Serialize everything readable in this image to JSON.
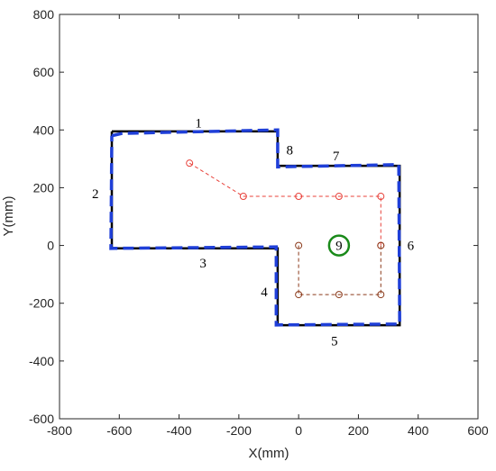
{
  "chart_data": {
    "type": "line",
    "xlabel": "X(mm)",
    "ylabel": "Y(mm)",
    "xlim": [
      -800,
      600
    ],
    "ylim": [
      -600,
      800
    ],
    "xticks": [
      -800,
      -600,
      -400,
      -200,
      0,
      200,
      400,
      600
    ],
    "yticks": [
      -600,
      -400,
      -200,
      0,
      200,
      400,
      600,
      800
    ],
    "grid": false,
    "series": [
      {
        "color": "#000000",
        "dash": "solid",
        "width": 2.5,
        "x": [
          -625,
          -70,
          -70,
          338,
          338,
          -70,
          -70,
          -625,
          -625
        ],
        "values": [
          395,
          395,
          276,
          276,
          -276,
          -276,
          -10,
          -10,
          395
        ]
      },
      {
        "color": "#1f3fd8",
        "dash": "dashed",
        "width": 3.5,
        "x": [
          -625,
          -590,
          -70,
          -70,
          335,
          338,
          -75,
          -75,
          -628,
          -625
        ],
        "values": [
          380,
          388,
          400,
          272,
          280,
          -272,
          -275,
          -5,
          -10,
          380
        ]
      },
      {
        "color": "#e8413a",
        "dash": "dashed",
        "width": 1,
        "marker": "circle",
        "x": [
          -365,
          -185,
          0,
          135,
          275,
          275
        ],
        "values": [
          285,
          170,
          170,
          170,
          170,
          0
        ]
      },
      {
        "color": "#8b3a1a",
        "dash": "dashed",
        "width": 1,
        "marker": "circle",
        "x": [
          0,
          0,
          135,
          275,
          275
        ],
        "values": [
          0,
          -170,
          -170,
          -170,
          0
        ]
      },
      {
        "color": "#1a8a1a",
        "dash": "solid",
        "width": 2.5,
        "marker": "ring",
        "x": [
          135
        ],
        "values": [
          0
        ]
      }
    ],
    "annotations": [
      "1",
      "2",
      "3",
      "4",
      "5",
      "6",
      "7",
      "8",
      "9"
    ]
  }
}
